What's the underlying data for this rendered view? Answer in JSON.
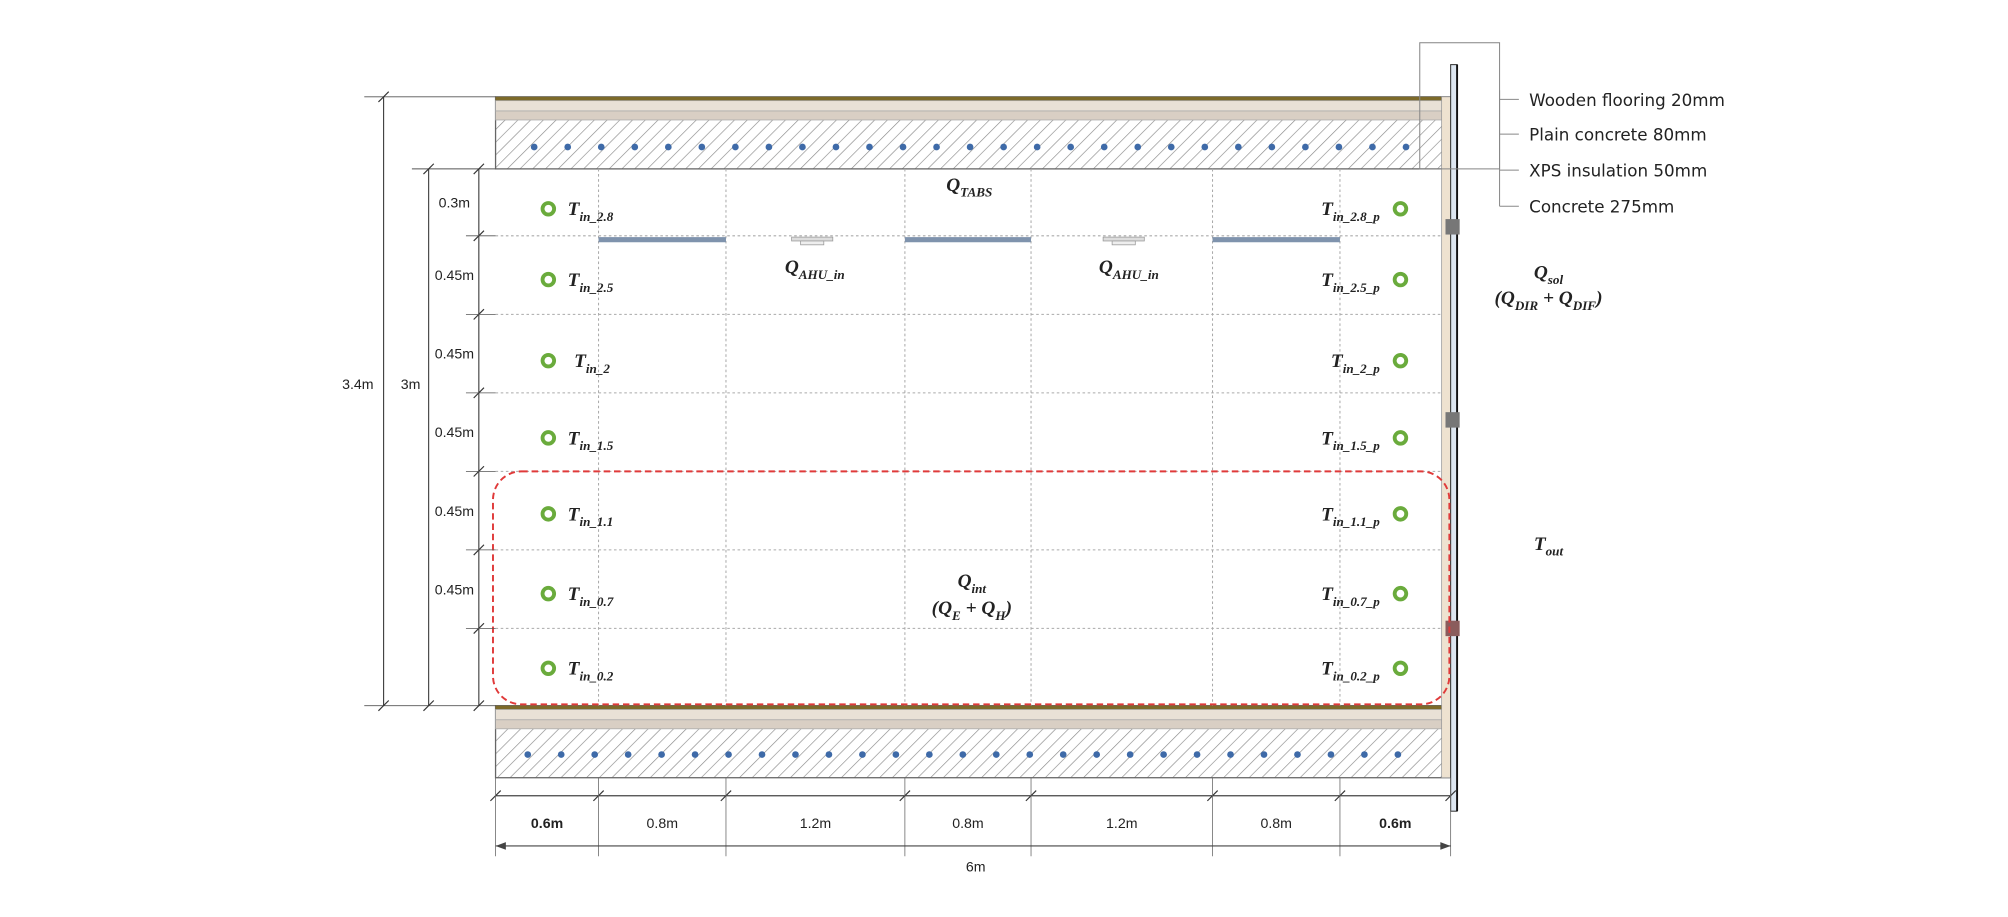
{
  "layers": [
    "Wooden flooring 20mm",
    "Plain concrete 80mm",
    "XPS insulation 50mm",
    "Concrete 275mm"
  ],
  "height_dims": {
    "total": "3.4m",
    "room": "3m",
    "segments": [
      "0.3m",
      "0.45m",
      "0.45m",
      "0.45m",
      "0.45m",
      "0.45m"
    ]
  },
  "width_dims": {
    "total": "6m",
    "segments": [
      "0.6m",
      "0.8m",
      "1.2m",
      "0.8m",
      "1.2m",
      "0.8m",
      "0.6m"
    ]
  },
  "sensors_left": [
    [
      {
        "text": "T",
        "sub": "in_2.8"
      }
    ],
    [
      {
        "text": "T",
        "sub": "in_2.5"
      }
    ],
    [
      {
        "text": "T",
        "sub": "in_2"
      }
    ],
    [
      {
        "text": "T",
        "sub": "in_1.5"
      }
    ],
    [
      {
        "text": "T",
        "sub": "in_1.1"
      }
    ],
    [
      {
        "text": "T",
        "sub": "in_0.7"
      }
    ],
    [
      {
        "text": "T",
        "sub": "in_0.2"
      }
    ]
  ],
  "sensors_right": [
    [
      {
        "text": "T",
        "sub": "in_2.8_p"
      }
    ],
    [
      {
        "text": "T",
        "sub": "in_2.5_p"
      }
    ],
    [
      {
        "text": "T",
        "sub": "in_2_p"
      }
    ],
    [
      {
        "text": "T",
        "sub": "in_1.5_p"
      }
    ],
    [
      {
        "text": "T",
        "sub": "in_1.1_p"
      }
    ],
    [
      {
        "text": "T",
        "sub": "in_0.7_p"
      }
    ],
    [
      {
        "text": "T",
        "sub": "in_0.2_p"
      }
    ]
  ],
  "heat_labels": {
    "tabs": [
      {
        "text": "Q",
        "sub": "TABS"
      }
    ],
    "ahu_1": [
      {
        "text": "Q",
        "sub": "AHU_in"
      }
    ],
    "ahu_2": [
      {
        "text": "Q",
        "sub": "AHU_in"
      }
    ],
    "sol": [
      {
        "text": "Q",
        "sub": "sol"
      }
    ],
    "sol_parts": [
      {
        "text": "(Q",
        "sub": "DIR"
      },
      {
        "text": " + Q",
        "sub": "DIF"
      },
      {
        "text": ")"
      }
    ],
    "out": [
      {
        "text": "T",
        "sub": "out"
      }
    ],
    "int": [
      {
        "text": "Q",
        "sub": "int"
      }
    ],
    "int_parts": [
      {
        "text": "(Q",
        "sub": "E"
      },
      {
        "text": " + Q",
        "sub": "H"
      },
      {
        "text": ")"
      }
    ]
  }
}
